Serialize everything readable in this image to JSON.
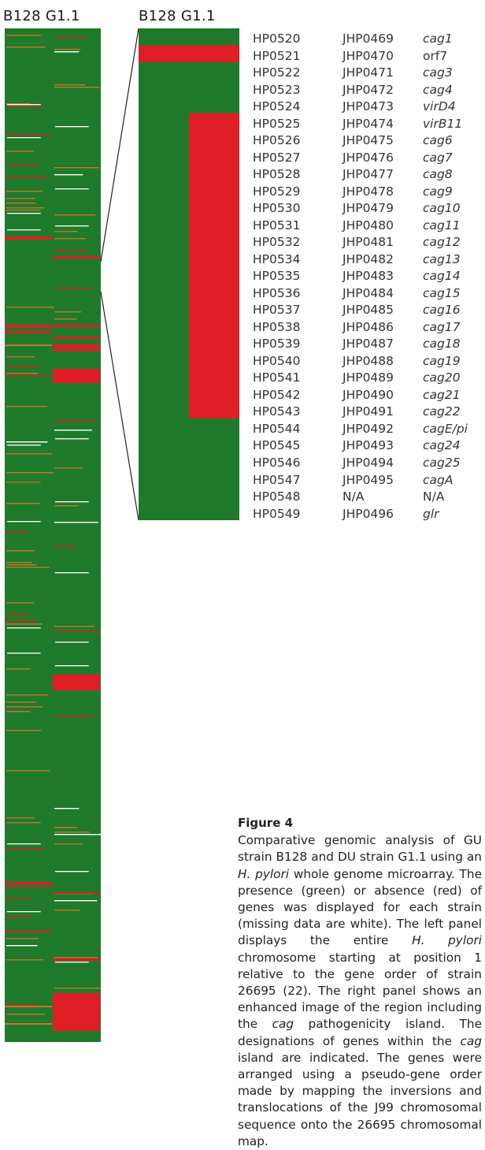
{
  "left_panel": {
    "labels": [
      "B128",
      "G1.1"
    ]
  },
  "right_panel": {
    "labels": [
      "B128",
      "G1.1"
    ]
  },
  "colors": {
    "present": "#1f7a2c",
    "absent": "#e01e26",
    "missing": "#ffffff",
    "variant": "#c6752e"
  },
  "genes": [
    {
      "hp": "HP0520",
      "jhp": "JHP0469",
      "name": "cag1",
      "italic": true,
      "b128": "present",
      "g11": "present"
    },
    {
      "hp": "HP0521",
      "jhp": "JHP0470",
      "name": "orf7",
      "italic": false,
      "b128": "absent",
      "g11": "absent"
    },
    {
      "hp": "HP0522",
      "jhp": "JHP0471",
      "name": "cag3",
      "italic": true,
      "b128": "present",
      "g11": "present"
    },
    {
      "hp": "HP0523",
      "jhp": "JHP0472",
      "name": "cag4",
      "italic": true,
      "b128": "present",
      "g11": "present"
    },
    {
      "hp": "HP0524",
      "jhp": "JHP0473",
      "name": "virD4",
      "italic": true,
      "b128": "present",
      "g11": "present"
    },
    {
      "hp": "HP0525",
      "jhp": "JHP0474",
      "name": "virB11",
      "italic": true,
      "b128": "present",
      "g11": "absent"
    },
    {
      "hp": "HP0526",
      "jhp": "JHP0475",
      "name": "cag6",
      "italic": true,
      "b128": "present",
      "g11": "absent"
    },
    {
      "hp": "HP0527",
      "jhp": "JHP0476",
      "name": "cag7",
      "italic": true,
      "b128": "present",
      "g11": "absent"
    },
    {
      "hp": "HP0528",
      "jhp": "JHP0477",
      "name": "cag8",
      "italic": true,
      "b128": "present",
      "g11": "absent"
    },
    {
      "hp": "HP0529",
      "jhp": "JHP0478",
      "name": "cag9",
      "italic": true,
      "b128": "present",
      "g11": "absent"
    },
    {
      "hp": "HP0530",
      "jhp": "JHP0479",
      "name": "cag10",
      "italic": true,
      "b128": "present",
      "g11": "absent"
    },
    {
      "hp": "HP0531",
      "jhp": "JHP0480",
      "name": "cag11",
      "italic": true,
      "b128": "present",
      "g11": "absent"
    },
    {
      "hp": "HP0532",
      "jhp": "JHP0481",
      "name": "cag12",
      "italic": true,
      "b128": "present",
      "g11": "absent"
    },
    {
      "hp": "HP0534",
      "jhp": "JHP0482",
      "name": "cag13",
      "italic": true,
      "b128": "present",
      "g11": "absent"
    },
    {
      "hp": "HP0535",
      "jhp": "JHP0483",
      "name": "cag14",
      "italic": true,
      "b128": "present",
      "g11": "absent"
    },
    {
      "hp": "HP0536",
      "jhp": "JHP0484",
      "name": "cag15",
      "italic": true,
      "b128": "present",
      "g11": "absent"
    },
    {
      "hp": "HP0537",
      "jhp": "JHP0485",
      "name": "cag16",
      "italic": true,
      "b128": "present",
      "g11": "absent"
    },
    {
      "hp": "HP0538",
      "jhp": "JHP0486",
      "name": "cag17",
      "italic": true,
      "b128": "present",
      "g11": "absent"
    },
    {
      "hp": "HP0539",
      "jhp": "JHP0487",
      "name": "cag18",
      "italic": true,
      "b128": "present",
      "g11": "absent"
    },
    {
      "hp": "HP0540",
      "jhp": "JHP0488",
      "name": "cag19",
      "italic": true,
      "b128": "present",
      "g11": "absent"
    },
    {
      "hp": "HP0541",
      "jhp": "JHP0489",
      "name": "cag20",
      "italic": true,
      "b128": "present",
      "g11": "absent"
    },
    {
      "hp": "HP0542",
      "jhp": "JHP0490",
      "name": "cag21",
      "italic": true,
      "b128": "present",
      "g11": "absent"
    },
    {
      "hp": "HP0543",
      "jhp": "JHP0491",
      "name": "cag22",
      "italic": true,
      "b128": "present",
      "g11": "absent"
    },
    {
      "hp": "HP0544",
      "jhp": "JHP0492",
      "name": "cagE/pi",
      "italic": true,
      "b128": "present",
      "g11": "present"
    },
    {
      "hp": "HP0545",
      "jhp": "JHP0493",
      "name": "cag24",
      "italic": true,
      "b128": "present",
      "g11": "present"
    },
    {
      "hp": "HP0546",
      "jhp": "JHP0494",
      "name": "cag25",
      "italic": true,
      "b128": "present",
      "g11": "present"
    },
    {
      "hp": "HP0547",
      "jhp": "JHP0495",
      "name": "cagA",
      "italic": true,
      "b128": "present",
      "g11": "present"
    },
    {
      "hp": "HP0548",
      "jhp": "N/A",
      "name": "N/A",
      "italic": false,
      "b128": "present",
      "g11": "present"
    },
    {
      "hp": "HP0549",
      "jhp": "JHP0496",
      "name": "glr",
      "italic": true,
      "b128": "present",
      "g11": "present"
    }
  ],
  "caption": {
    "title": "Figure 4",
    "parts": [
      {
        "text": "Comparative genomic analysis of GU strain B128 and DU strain G1.1 using an ",
        "italic": false
      },
      {
        "text": "H. pylori",
        "italic": true
      },
      {
        "text": " whole genome microarray. The presence (green) or absence (red) of genes was displayed for each strain (missing data are white). The left panel displays the entire ",
        "italic": false
      },
      {
        "text": "H. pylori",
        "italic": true
      },
      {
        "text": " chromosome starting at position 1 relative to the gene order of strain 26695 (22). The right panel shows an enhanced image of the region including the ",
        "italic": false
      },
      {
        "text": "cag",
        "italic": true
      },
      {
        "text": " pathogenicity island. The designations of genes within the ",
        "italic": false
      },
      {
        "text": "cag",
        "italic": true
      },
      {
        "text": " island are indicated. The genes were arranged using a pseudo-gene order made by mapping the inversions and translocations of the J99 chromosomal sequence onto the 26695 chromosomal map.",
        "italic": false
      }
    ]
  }
}
